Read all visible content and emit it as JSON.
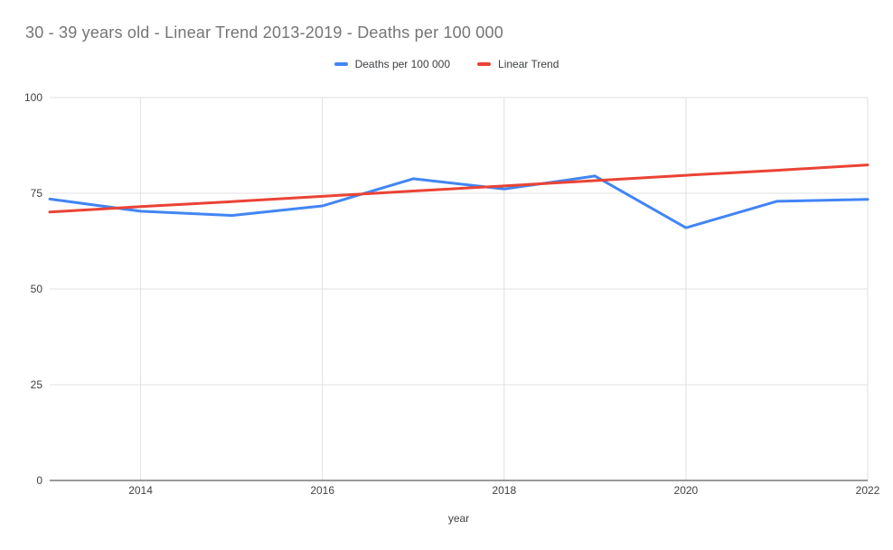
{
  "title": "30 - 39 years old - Linear Trend 2013-2019 - Deaths per 100 000",
  "colors": {
    "background": "#ffffff",
    "title_text": "#757575",
    "tick_label": "#424242",
    "legend_text": "#3c4043",
    "gridline": "#e0e0e0",
    "axis_line": "#333333",
    "series_deaths": "#4285f4",
    "series_trend": "#ea4335"
  },
  "chart_data": {
    "type": "line",
    "title": "30 - 39 years old - Linear Trend 2013-2019 - Deaths per 100 000",
    "xlabel": "year",
    "ylabel": "",
    "x": [
      2013,
      2014,
      2015,
      2016,
      2017,
      2018,
      2019,
      2020,
      2021,
      2022
    ],
    "xlim": [
      2013,
      2022
    ],
    "ylim": [
      0,
      100
    ],
    "yticks": [
      0,
      25,
      50,
      75,
      100
    ],
    "xticks": [
      2014,
      2016,
      2018,
      2020,
      2022
    ],
    "grid": true,
    "legend_position": "top-center",
    "series": [
      {
        "name": "Deaths per 100 000",
        "color": "#4285f4",
        "values": [
          73.5,
          70.3,
          69.2,
          71.7,
          78.8,
          76.1,
          79.5,
          66.0,
          72.9,
          73.4
        ]
      },
      {
        "name": "Linear Trend",
        "color": "#ea4335",
        "values": [
          70.1,
          71.5,
          72.8,
          74.2,
          75.6,
          76.9,
          78.3,
          79.7,
          81.0,
          82.4
        ]
      }
    ]
  }
}
